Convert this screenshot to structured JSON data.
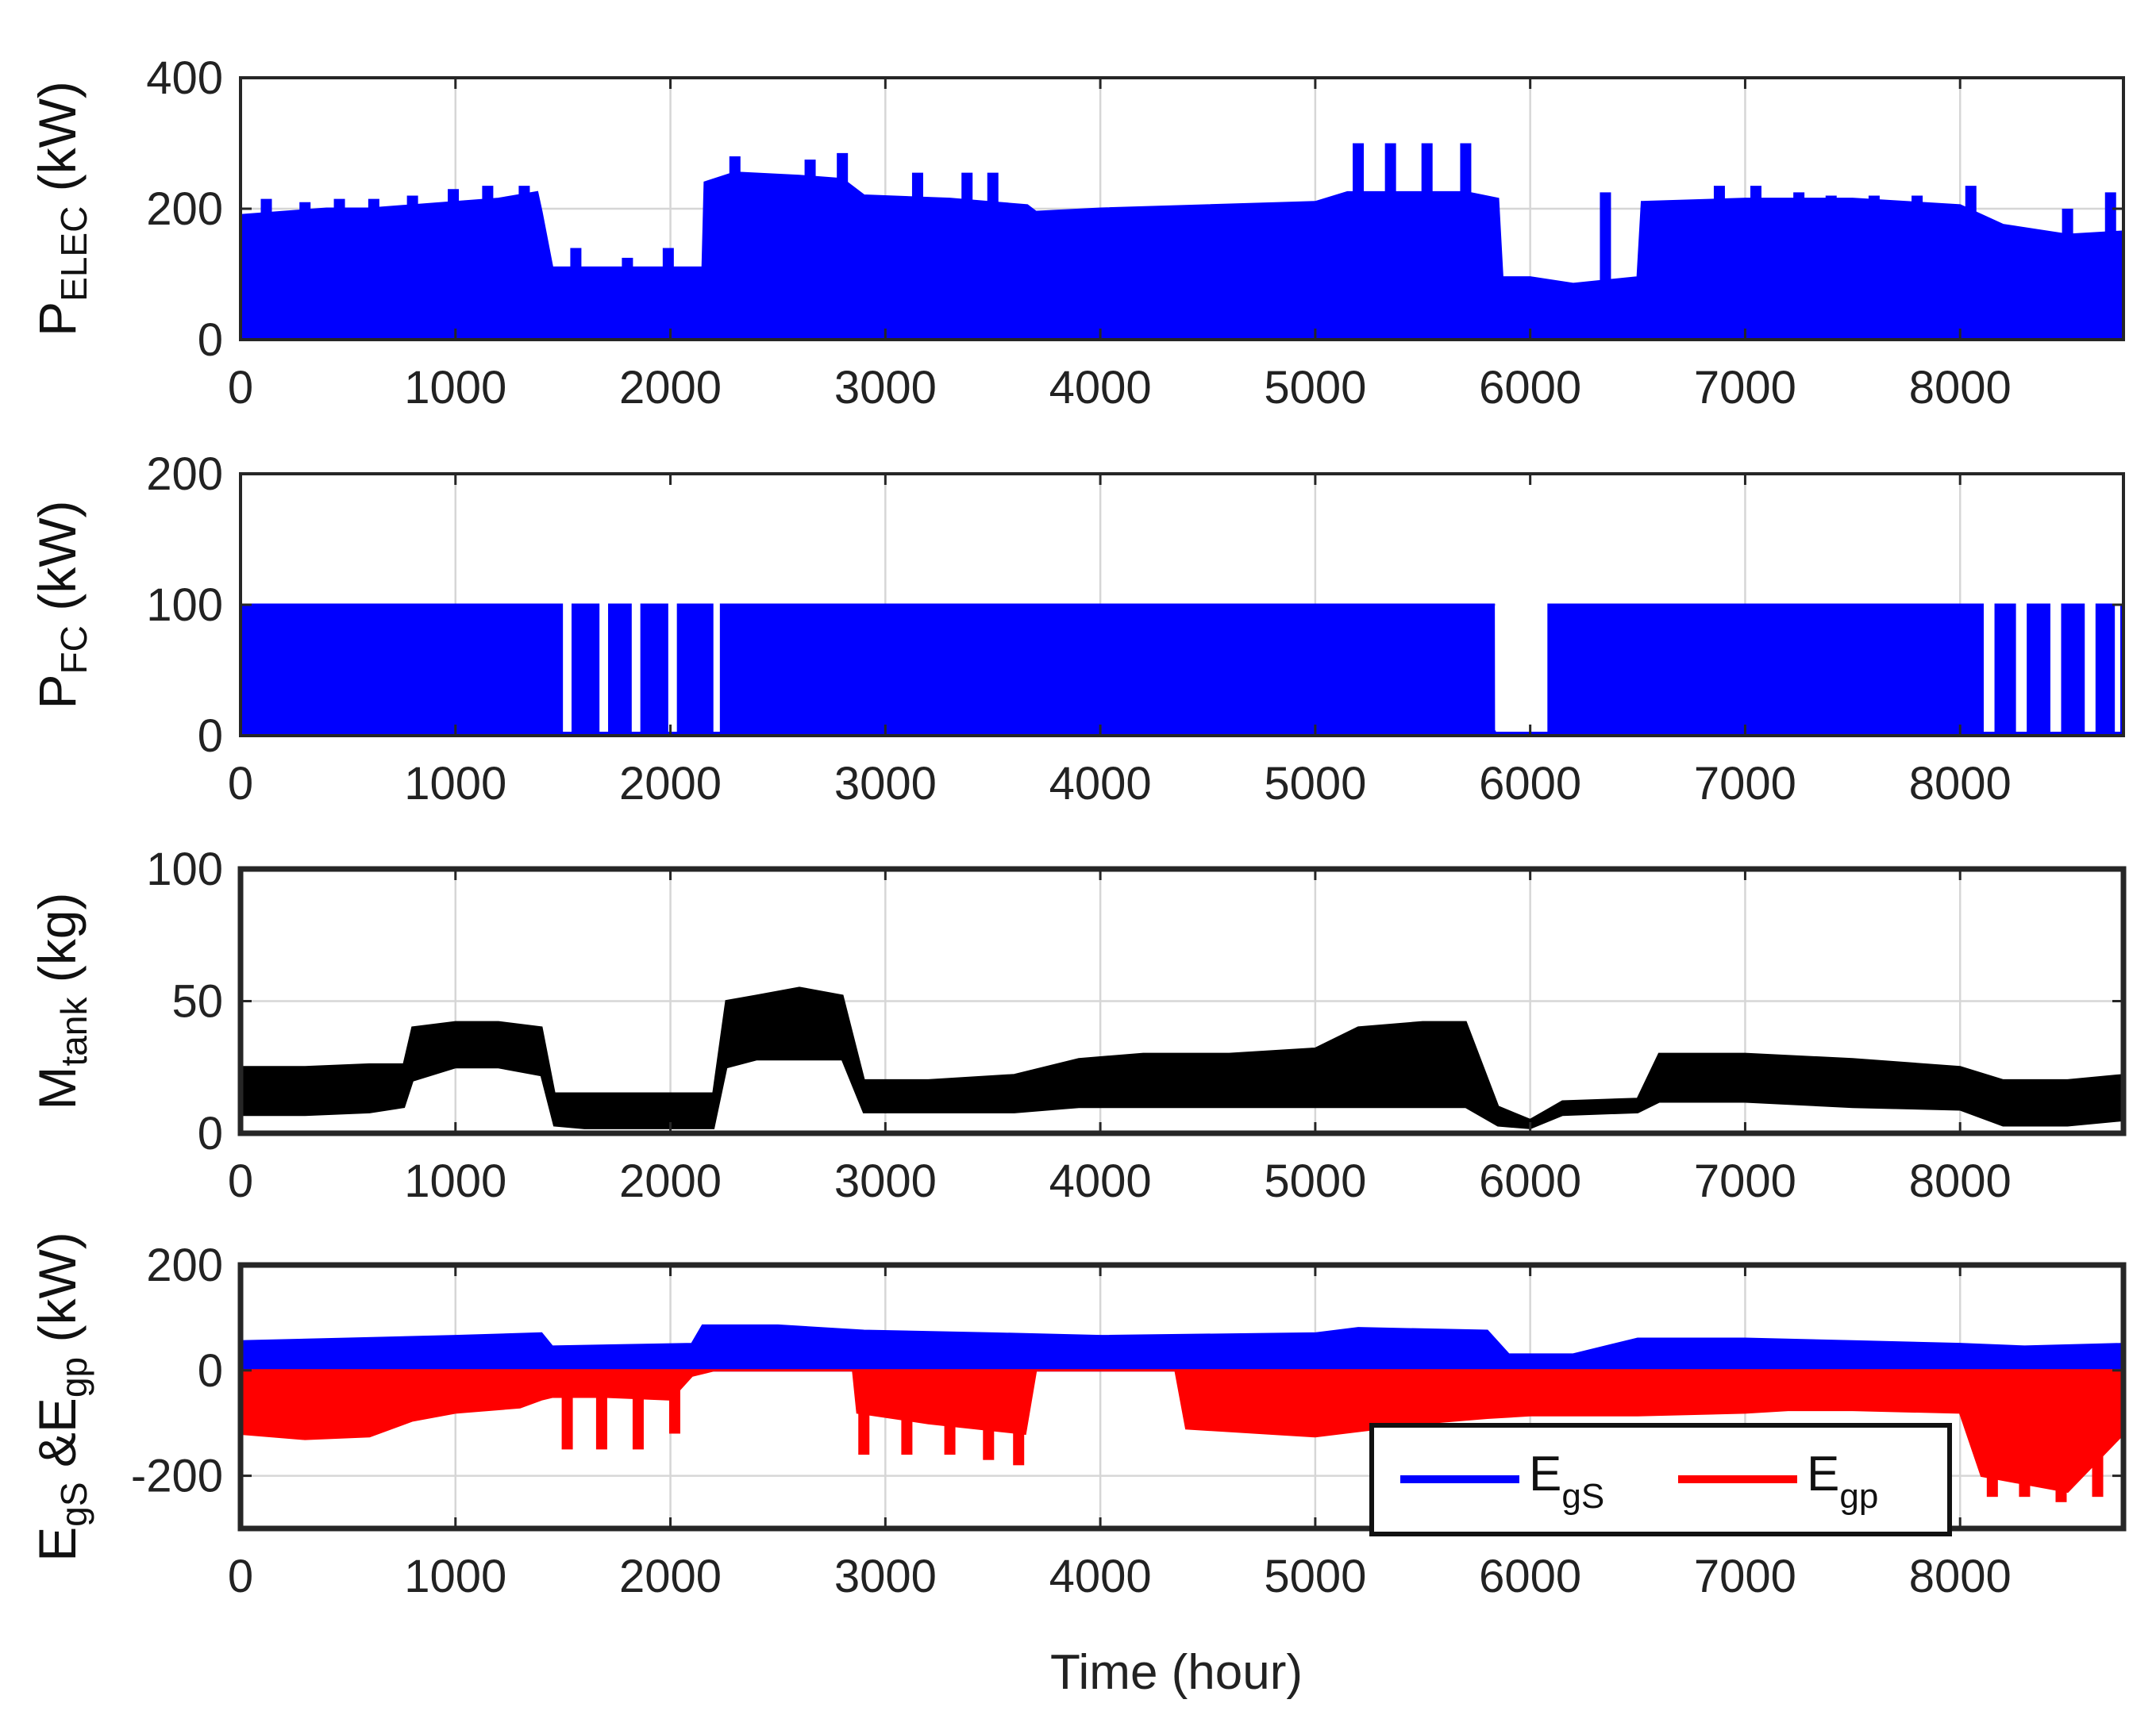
{
  "xlabel": "Time (hour)",
  "colors": {
    "blue": "#0000ff",
    "red": "#ff0000",
    "black": "#000000",
    "grid": "#d6d6d6",
    "axis": "#262626"
  },
  "chart_data": [
    {
      "type": "area",
      "ylabel": {
        "main": "P",
        "sub": "ELEC",
        "unit": " (kW)"
      },
      "xlim": [
        0,
        8760
      ],
      "ylim": [
        0,
        400
      ],
      "xticks": [
        0,
        1000,
        2000,
        3000,
        4000,
        5000,
        6000,
        7000,
        8000
      ],
      "yticks": [
        0,
        200,
        400
      ],
      "grid": true,
      "series": [
        {
          "color": "#0000ff",
          "lower": 0,
          "x": [
            0,
            200,
            400,
            600,
            800,
            1000,
            1200,
            1380,
            1400,
            1450,
            1600,
            1800,
            2000,
            2150,
            2160,
            2300,
            2600,
            2800,
            2900,
            3300,
            3660,
            3700,
            4000,
            4500,
            5000,
            5150,
            5400,
            5700,
            5850,
            5870,
            6000,
            6200,
            6500,
            6520,
            7000,
            7500,
            8000,
            8200,
            8500,
            8760
          ],
          "upper": [
            190,
            195,
            200,
            200,
            205,
            210,
            215,
            225,
            195,
            110,
            110,
            110,
            110,
            110,
            240,
            255,
            250,
            245,
            220,
            215,
            205,
            195,
            200,
            205,
            210,
            225,
            225,
            225,
            215,
            95,
            95,
            85,
            95,
            210,
            215,
            215,
            205,
            175,
            160,
            165
          ]
        }
      ],
      "spikes": [
        {
          "x": 120,
          "y": 215
        },
        {
          "x": 300,
          "y": 210
        },
        {
          "x": 460,
          "y": 215
        },
        {
          "x": 620,
          "y": 215
        },
        {
          "x": 800,
          "y": 220
        },
        {
          "x": 990,
          "y": 230
        },
        {
          "x": 1150,
          "y": 235
        },
        {
          "x": 1320,
          "y": 235
        },
        {
          "x": 1560,
          "y": 140
        },
        {
          "x": 1800,
          "y": 125
        },
        {
          "x": 1990,
          "y": 140
        },
        {
          "x": 2300,
          "y": 280
        },
        {
          "x": 2650,
          "y": 275
        },
        {
          "x": 2800,
          "y": 285
        },
        {
          "x": 3150,
          "y": 255
        },
        {
          "x": 3380,
          "y": 255
        },
        {
          "x": 3500,
          "y": 255
        },
        {
          "x": 5200,
          "y": 300
        },
        {
          "x": 5350,
          "y": 300
        },
        {
          "x": 5520,
          "y": 300
        },
        {
          "x": 5700,
          "y": 300
        },
        {
          "x": 6350,
          "y": 225
        },
        {
          "x": 6880,
          "y": 235
        },
        {
          "x": 7050,
          "y": 235
        },
        {
          "x": 7250,
          "y": 225
        },
        {
          "x": 7400,
          "y": 220
        },
        {
          "x": 7600,
          "y": 220
        },
        {
          "x": 7800,
          "y": 220
        },
        {
          "x": 8050,
          "y": 235
        },
        {
          "x": 8500,
          "y": 200
        },
        {
          "x": 8700,
          "y": 225
        }
      ]
    },
    {
      "type": "area",
      "ylabel": {
        "main": "P",
        "sub": "FC",
        "unit": " (kW)"
      },
      "xlim": [
        0,
        8760
      ],
      "ylim": [
        0,
        200
      ],
      "xticks": [
        0,
        1000,
        2000,
        3000,
        4000,
        5000,
        6000,
        7000,
        8000
      ],
      "yticks": [
        0,
        100,
        200
      ],
      "grid": true,
      "series": [
        {
          "color": "#0000ff",
          "lower": 0,
          "x": [
            0,
            5830,
            5831,
            6080,
            6081,
            8760
          ],
          "upper": [
            100,
            100,
            3,
            3,
            100,
            100
          ]
        }
      ],
      "gaps": [
        [
          1500,
          1540
        ],
        [
          1670,
          1710
        ],
        [
          1820,
          1860
        ],
        [
          1990,
          2030
        ],
        [
          2200,
          2230
        ],
        [
          5840,
          6080
        ],
        [
          8110,
          8160
        ],
        [
          8260,
          8310
        ],
        [
          8420,
          8470
        ],
        [
          8580,
          8630
        ],
        [
          8720,
          8745
        ]
      ]
    },
    {
      "type": "area",
      "ylabel": {
        "main": "M",
        "sub": "tank",
        "unit": " (kg)"
      },
      "xlim": [
        0,
        8760
      ],
      "ylim": [
        0,
        100
      ],
      "xticks": [
        0,
        1000,
        2000,
        3000,
        4000,
        5000,
        6000,
        7000,
        8000
      ],
      "yticks": [
        0,
        50,
        100
      ],
      "grid": true,
      "series": [
        {
          "color": "#000000",
          "x": [
            0,
            300,
            600,
            760,
            800,
            1000,
            1200,
            1400,
            1460,
            1600,
            1800,
            2000,
            2200,
            2260,
            2400,
            2600,
            2800,
            2900,
            3200,
            3600,
            3900,
            4200,
            4600,
            5000,
            5200,
            5500,
            5700,
            5850,
            6000,
            6150,
            6500,
            6600,
            7000,
            7500,
            8000,
            8200,
            8500,
            8760
          ],
          "lower": [
            7,
            7,
            8,
            10,
            20,
            25,
            25,
            22,
            3,
            2,
            2,
            2,
            2,
            25,
            28,
            28,
            28,
            8,
            8,
            8,
            10,
            10,
            10,
            10,
            10,
            10,
            10,
            3,
            2,
            7,
            8,
            12,
            12,
            10,
            9,
            3,
            3,
            5
          ],
          "upper": [
            25,
            25,
            26,
            26,
            40,
            42,
            42,
            40,
            15,
            15,
            15,
            15,
            15,
            50,
            52,
            55,
            52,
            20,
            20,
            22,
            28,
            30,
            30,
            32,
            40,
            42,
            42,
            10,
            5,
            12,
            13,
            30,
            30,
            28,
            25,
            20,
            20,
            22
          ]
        }
      ]
    },
    {
      "type": "area",
      "ylabel": {
        "main1": "E",
        "sub1": "gS",
        "mid": " &E",
        "sub2": "gp",
        "unit": " (kW)"
      },
      "xlim": [
        0,
        8760
      ],
      "ylim": [
        -300,
        200
      ],
      "xticks": [
        0,
        1000,
        2000,
        3000,
        4000,
        5000,
        6000,
        7000,
        8000
      ],
      "yticks": [
        -200,
        0,
        200
      ],
      "grid": true,
      "legend": {
        "position": "lower-right",
        "entries": [
          {
            "main": "E",
            "sub": "gS",
            "color": "#0000ff"
          },
          {
            "main": "E",
            "sub": "gp",
            "color": "#ff0000"
          }
        ]
      },
      "series": [
        {
          "name": "EgS",
          "color": "#0000ff",
          "lower": 0,
          "x": [
            0,
            500,
            1000,
            1400,
            1450,
            2100,
            2150,
            2500,
            2900,
            3500,
            4000,
            5000,
            5200,
            5800,
            5900,
            6200,
            6500,
            7000,
            7500,
            8000,
            8300,
            8760
          ],
          "upper": [
            55,
            60,
            65,
            70,
            45,
            50,
            85,
            85,
            75,
            70,
            65,
            70,
            80,
            75,
            30,
            30,
            60,
            60,
            55,
            50,
            45,
            50
          ]
        },
        {
          "name": "Egp",
          "color": "#ff0000",
          "upper": 0,
          "x": [
            0,
            300,
            600,
            800,
            1000,
            1300,
            1400,
            1450,
            1700,
            2000,
            2100,
            2200,
            2850,
            2870,
            3200,
            3650,
            3700,
            4350,
            4400,
            4800,
            5000,
            5500,
            5800,
            6000,
            6500,
            7000,
            7200,
            7500,
            8000,
            8100,
            8300,
            8500,
            8760
          ],
          "lower": [
            -120,
            -130,
            -125,
            -95,
            -80,
            -70,
            -55,
            -50,
            -50,
            -55,
            -10,
            0,
            0,
            -80,
            -100,
            -120,
            0,
            0,
            -110,
            -120,
            -125,
            -100,
            -90,
            -85,
            -85,
            -80,
            -75,
            -75,
            -80,
            -200,
            -215,
            -230,
            -120
          ]
        }
      ],
      "spikes": [
        {
          "x": 1520,
          "y": -150
        },
        {
          "x": 1680,
          "y": -150
        },
        {
          "x": 1850,
          "y": -150
        },
        {
          "x": 2020,
          "y": -120
        },
        {
          "x": 2900,
          "y": -160
        },
        {
          "x": 3100,
          "y": -160
        },
        {
          "x": 3300,
          "y": -160
        },
        {
          "x": 3480,
          "y": -170
        },
        {
          "x": 3620,
          "y": -180
        },
        {
          "x": 8150,
          "y": -240
        },
        {
          "x": 8300,
          "y": -240
        },
        {
          "x": 8470,
          "y": -250
        },
        {
          "x": 8640,
          "y": -240
        }
      ]
    }
  ]
}
